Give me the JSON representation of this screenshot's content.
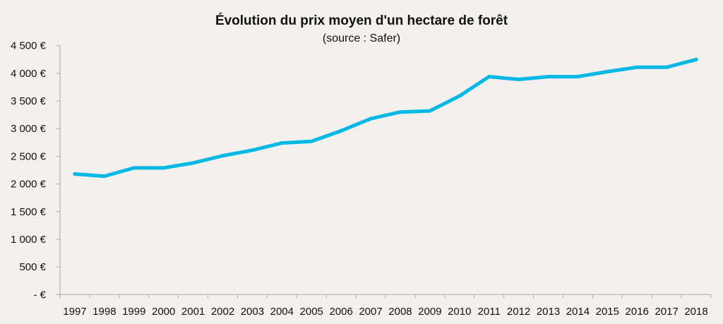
{
  "chart_data": {
    "type": "line",
    "title": "Évolution du prix moyen d'un hectare de  forêt",
    "subtitle": "(source : Safer)",
    "xlabel": "",
    "ylabel": "",
    "ylim": [
      0,
      4500
    ],
    "yticks": [
      0,
      500,
      1000,
      1500,
      2000,
      2500,
      3000,
      3500,
      4000,
      4500
    ],
    "ytick_labels": [
      "-   €",
      "500 €",
      "1 000 €",
      "1 500 €",
      "2 000 €",
      "2 500 €",
      "3 000 €",
      "3 500 €",
      "4 000 €",
      "4 500 €"
    ],
    "categories": [
      "1997",
      "1998",
      "1999",
      "2000",
      "2001",
      "2002",
      "2003",
      "2004",
      "2005",
      "2006",
      "2007",
      "2008",
      "2009",
      "2010",
      "2011",
      "2012",
      "2013",
      "2014",
      "2015",
      "2016",
      "2017",
      "2018"
    ],
    "series": [
      {
        "name": "Prix moyen d'un hectare de forêt",
        "color": "#00b8e6",
        "values": [
          2180,
          2140,
          2290,
          2290,
          2380,
          2510,
          2610,
          2740,
          2770,
          2960,
          3180,
          3300,
          3320,
          3590,
          3940,
          3890,
          3940,
          3940,
          4030,
          4110,
          4110,
          4250
        ]
      }
    ],
    "grid": false,
    "legend": "none"
  }
}
